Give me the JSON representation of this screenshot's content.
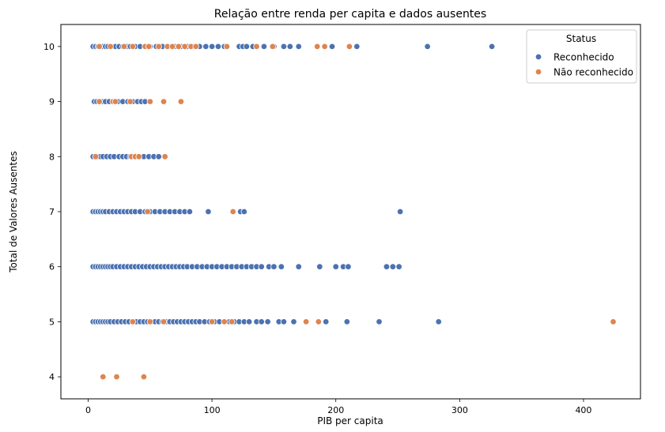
{
  "chart_data": {
    "type": "scatter",
    "title": "Relação entre renda per capita e dados ausentes",
    "xlabel": "PIB per capita",
    "ylabel": "Total de Valores Ausentes",
    "xlim": [
      -22,
      446
    ],
    "ylim": [
      3.6,
      10.4
    ],
    "xticks": [
      "0",
      "100",
      "200",
      "300",
      "400"
    ],
    "yticks": [
      "4",
      "5",
      "6",
      "7",
      "8",
      "9",
      "10"
    ],
    "grid": false,
    "legend": {
      "title": "Status",
      "position": "top-right"
    },
    "series": [
      {
        "name": "Reconhecido",
        "color": "#4c72b0",
        "points": [
          [
            4,
            10
          ],
          [
            6,
            10
          ],
          [
            8,
            10
          ],
          [
            10,
            10
          ],
          [
            12,
            10
          ],
          [
            14,
            10
          ],
          [
            16,
            10
          ],
          [
            19,
            10
          ],
          [
            22,
            10
          ],
          [
            25,
            10
          ],
          [
            28,
            10
          ],
          [
            31,
            10
          ],
          [
            34,
            10
          ],
          [
            38,
            10
          ],
          [
            42,
            10
          ],
          [
            46,
            10
          ],
          [
            50,
            10
          ],
          [
            55,
            10
          ],
          [
            60,
            10
          ],
          [
            65,
            10
          ],
          [
            70,
            10
          ],
          [
            75,
            10
          ],
          [
            80,
            10
          ],
          [
            85,
            10
          ],
          [
            90,
            10
          ],
          [
            95,
            10
          ],
          [
            100,
            10
          ],
          [
            105,
            10
          ],
          [
            110,
            10
          ],
          [
            122,
            10
          ],
          [
            125,
            10
          ],
          [
            128,
            10
          ],
          [
            133,
            10
          ],
          [
            142,
            10
          ],
          [
            150,
            10
          ],
          [
            158,
            10
          ],
          [
            163,
            10
          ],
          [
            170,
            10
          ],
          [
            197,
            10
          ],
          [
            217,
            10
          ],
          [
            274,
            10
          ],
          [
            326,
            10
          ],
          [
            5,
            9
          ],
          [
            7,
            9
          ],
          [
            9,
            9
          ],
          [
            12,
            9
          ],
          [
            14,
            9
          ],
          [
            17,
            9
          ],
          [
            20,
            9
          ],
          [
            24,
            9
          ],
          [
            28,
            9
          ],
          [
            32,
            9
          ],
          [
            36,
            9
          ],
          [
            40,
            9
          ],
          [
            43,
            9
          ],
          [
            46,
            9
          ],
          [
            4,
            8
          ],
          [
            6,
            8
          ],
          [
            8,
            8
          ],
          [
            10,
            8
          ],
          [
            12,
            8
          ],
          [
            15,
            8
          ],
          [
            18,
            8
          ],
          [
            21,
            8
          ],
          [
            25,
            8
          ],
          [
            28,
            8
          ],
          [
            31,
            8
          ],
          [
            34,
            8
          ],
          [
            38,
            8
          ],
          [
            41,
            8
          ],
          [
            45,
            8
          ],
          [
            49,
            8
          ],
          [
            53,
            8
          ],
          [
            57,
            8
          ],
          [
            4,
            7
          ],
          [
            6,
            7
          ],
          [
            8,
            7
          ],
          [
            10,
            7
          ],
          [
            12,
            7
          ],
          [
            14,
            7
          ],
          [
            17,
            7
          ],
          [
            20,
            7
          ],
          [
            23,
            7
          ],
          [
            26,
            7
          ],
          [
            29,
            7
          ],
          [
            32,
            7
          ],
          [
            35,
            7
          ],
          [
            38,
            7
          ],
          [
            42,
            7
          ],
          [
            46,
            7
          ],
          [
            50,
            7
          ],
          [
            54,
            7
          ],
          [
            58,
            7
          ],
          [
            62,
            7
          ],
          [
            66,
            7
          ],
          [
            70,
            7
          ],
          [
            74,
            7
          ],
          [
            78,
            7
          ],
          [
            82,
            7
          ],
          [
            97,
            7
          ],
          [
            123,
            7
          ],
          [
            126,
            7
          ],
          [
            252,
            7
          ],
          [
            4,
            6
          ],
          [
            6,
            6
          ],
          [
            8,
            6
          ],
          [
            10,
            6
          ],
          [
            12,
            6
          ],
          [
            14,
            6
          ],
          [
            16,
            6
          ],
          [
            18,
            6
          ],
          [
            20,
            6
          ],
          [
            23,
            6
          ],
          [
            26,
            6
          ],
          [
            29,
            6
          ],
          [
            32,
            6
          ],
          [
            35,
            6
          ],
          [
            38,
            6
          ],
          [
            41,
            6
          ],
          [
            44,
            6
          ],
          [
            47,
            6
          ],
          [
            50,
            6
          ],
          [
            53,
            6
          ],
          [
            56,
            6
          ],
          [
            59,
            6
          ],
          [
            62,
            6
          ],
          [
            65,
            6
          ],
          [
            68,
            6
          ],
          [
            71,
            6
          ],
          [
            74,
            6
          ],
          [
            77,
            6
          ],
          [
            80,
            6
          ],
          [
            84,
            6
          ],
          [
            88,
            6
          ],
          [
            92,
            6
          ],
          [
            96,
            6
          ],
          [
            100,
            6
          ],
          [
            104,
            6
          ],
          [
            108,
            6
          ],
          [
            112,
            6
          ],
          [
            116,
            6
          ],
          [
            120,
            6
          ],
          [
            124,
            6
          ],
          [
            128,
            6
          ],
          [
            132,
            6
          ],
          [
            136,
            6
          ],
          [
            140,
            6
          ],
          [
            146,
            6
          ],
          [
            150,
            6
          ],
          [
            156,
            6
          ],
          [
            170,
            6
          ],
          [
            187,
            6
          ],
          [
            200,
            6
          ],
          [
            206,
            6
          ],
          [
            210,
            6
          ],
          [
            241,
            6
          ],
          [
            246,
            6
          ],
          [
            251,
            6
          ],
          [
            4,
            5
          ],
          [
            6,
            5
          ],
          [
            8,
            5
          ],
          [
            10,
            5
          ],
          [
            12,
            5
          ],
          [
            14,
            5
          ],
          [
            16,
            5
          ],
          [
            18,
            5
          ],
          [
            21,
            5
          ],
          [
            24,
            5
          ],
          [
            27,
            5
          ],
          [
            30,
            5
          ],
          [
            33,
            5
          ],
          [
            36,
            5
          ],
          [
            39,
            5
          ],
          [
            42,
            5
          ],
          [
            45,
            5
          ],
          [
            48,
            5
          ],
          [
            51,
            5
          ],
          [
            54,
            5
          ],
          [
            57,
            5
          ],
          [
            60,
            5
          ],
          [
            63,
            5
          ],
          [
            66,
            5
          ],
          [
            69,
            5
          ],
          [
            72,
            5
          ],
          [
            75,
            5
          ],
          [
            78,
            5
          ],
          [
            81,
            5
          ],
          [
            84,
            5
          ],
          [
            87,
            5
          ],
          [
            90,
            5
          ],
          [
            94,
            5
          ],
          [
            98,
            5
          ],
          [
            102,
            5
          ],
          [
            106,
            5
          ],
          [
            110,
            5
          ],
          [
            114,
            5
          ],
          [
            118,
            5
          ],
          [
            122,
            5
          ],
          [
            126,
            5
          ],
          [
            130,
            5
          ],
          [
            136,
            5
          ],
          [
            140,
            5
          ],
          [
            145,
            5
          ],
          [
            154,
            5
          ],
          [
            158,
            5
          ],
          [
            166,
            5
          ],
          [
            192,
            5
          ],
          [
            209,
            5
          ],
          [
            235,
            5
          ],
          [
            283,
            5
          ]
        ]
      },
      {
        "name": "Não reconhecido",
        "color": "#dd8452",
        "points": [
          [
            9,
            10
          ],
          [
            18,
            10
          ],
          [
            29,
            10
          ],
          [
            36,
            10
          ],
          [
            46,
            10
          ],
          [
            49,
            10
          ],
          [
            57,
            10
          ],
          [
            64,
            10
          ],
          [
            68,
            10
          ],
          [
            73,
            10
          ],
          [
            78,
            10
          ],
          [
            83,
            10
          ],
          [
            87,
            10
          ],
          [
            112,
            10
          ],
          [
            136,
            10
          ],
          [
            149,
            10
          ],
          [
            185,
            10
          ],
          [
            191,
            10
          ],
          [
            211,
            10
          ],
          [
            9,
            9
          ],
          [
            20,
            9
          ],
          [
            22,
            9
          ],
          [
            34,
            9
          ],
          [
            50,
            9
          ],
          [
            61,
            9
          ],
          [
            75,
            9
          ],
          [
            6,
            8
          ],
          [
            35,
            8
          ],
          [
            38,
            8
          ],
          [
            41,
            8
          ],
          [
            62,
            8
          ],
          [
            48,
            7
          ],
          [
            117,
            7
          ],
          [
            36,
            5
          ],
          [
            50,
            5
          ],
          [
            61,
            5
          ],
          [
            100,
            5
          ],
          [
            110,
            5
          ],
          [
            116,
            5
          ],
          [
            176,
            5
          ],
          [
            186,
            5
          ],
          [
            424,
            5
          ],
          [
            12,
            4
          ],
          [
            23,
            4
          ],
          [
            45,
            4
          ]
        ]
      }
    ]
  }
}
